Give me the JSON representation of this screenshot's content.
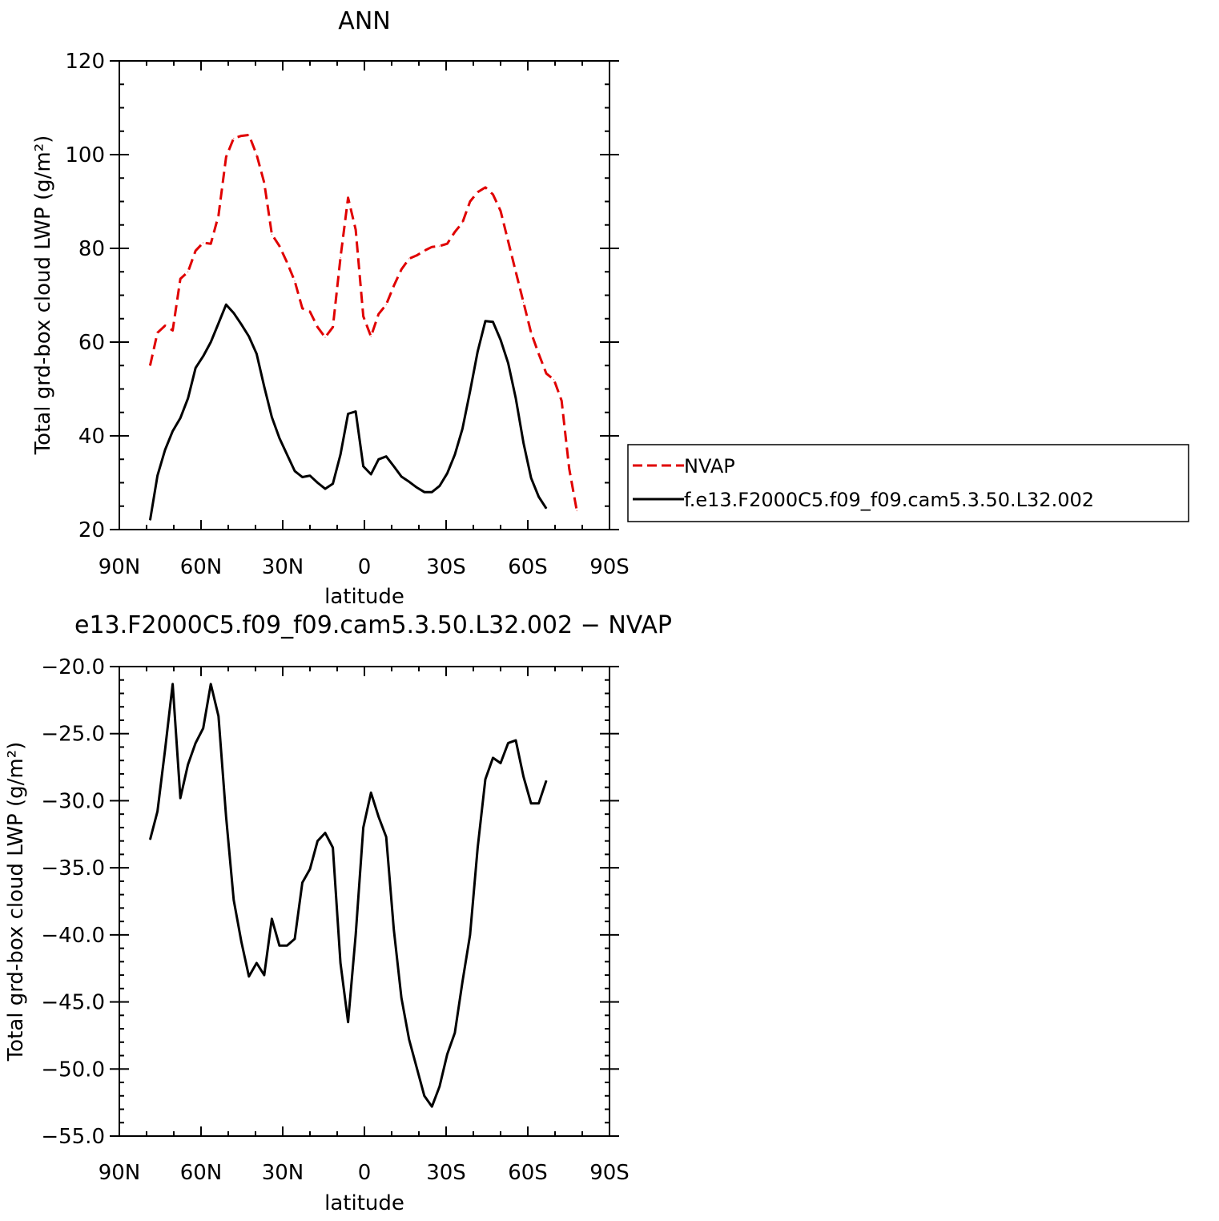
{
  "chart_data": [
    {
      "type": "line",
      "title": "ANN",
      "xlabel": "latitude",
      "ylabel": "Total grd-box cloud LWP (g/m²)",
      "xlim": [
        90,
        -90
      ],
      "ylim": [
        20,
        120
      ],
      "x_ticks": [
        90,
        60,
        30,
        0,
        -30,
        -60,
        -90
      ],
      "x_tick_labels": [
        "90N",
        "60N",
        "30N",
        "0",
        "30S",
        "60S",
        "90S"
      ],
      "y_ticks": [
        20,
        40,
        60,
        80,
        100,
        120
      ],
      "y_tick_labels": [
        "20",
        "40",
        "60",
        "80",
        "100",
        "120"
      ],
      "grid": false,
      "legend_position": "right",
      "series": [
        {
          "name": "NVAP",
          "color": "#e00000",
          "dash": "dashed",
          "x": [
            78.7,
            76,
            73.2,
            70.4,
            67.6,
            64.8,
            62,
            59.2,
            56.4,
            53.6,
            50.8,
            48,
            45.2,
            42.4,
            39.6,
            36.8,
            34,
            31.2,
            28.4,
            25.6,
            22.8,
            20,
            17.2,
            14.4,
            11.6,
            8.8,
            6,
            3.2,
            0.4,
            -2.4,
            -5.2,
            -8,
            -10.8,
            -13.6,
            -16.4,
            -19.2,
            -22,
            -24.8,
            -27.6,
            -30.4,
            -33.2,
            -36,
            -38.8,
            -41.6,
            -44.4,
            -47.2,
            -50,
            -52.8,
            -55.6,
            -58.4,
            -61.2,
            -64,
            -66.8,
            -69.6,
            -72.4,
            -75.2,
            -78
          ],
          "y": [
            55,
            62,
            63.5,
            62.5,
            73.5,
            75,
            79.5,
            81.2,
            81,
            87,
            99.5,
            103.5,
            104,
            104.2,
            100,
            94,
            83,
            80.5,
            77,
            73,
            67.2,
            66.5,
            63.2,
            61,
            63.2,
            78,
            90.8,
            84,
            65.5,
            61.2,
            66,
            68,
            72,
            75.5,
            77.8,
            78.5,
            79.5,
            80.3,
            80.5,
            81,
            83.5,
            85.5,
            90,
            92,
            93,
            91.5,
            88,
            81.5,
            75,
            68.5,
            62,
            57.5,
            53.3,
            52,
            47.5,
            33,
            24
          ]
        },
        {
          "name": "f.e13.F2000C5.f09_f09.cam5.3.50.L32.002",
          "color": "#000000",
          "dash": "solid",
          "x": [
            78.7,
            76,
            73.2,
            70.4,
            67.6,
            64.8,
            62,
            59.2,
            56.4,
            53.6,
            50.8,
            48,
            45.2,
            42.4,
            39.6,
            36.8,
            34,
            31.2,
            28.4,
            25.6,
            22.8,
            20,
            17.2,
            14.4,
            11.6,
            8.8,
            6,
            3.2,
            0.4,
            -2.4,
            -5.2,
            -8,
            -10.8,
            -13.6,
            -16.4,
            -19.2,
            -22,
            -24.8,
            -27.6,
            -30.4,
            -33.2,
            -36,
            -38.8,
            -41.6,
            -44.4,
            -47.2,
            -50,
            -52.8,
            -55.6,
            -58.4,
            -61.2,
            -64,
            -66.8
          ],
          "y": [
            22,
            31.5,
            37,
            41,
            43.8,
            48,
            54.5,
            57,
            60,
            64,
            68,
            66.2,
            63.8,
            61.2,
            57.5,
            50.5,
            44,
            39.5,
            36,
            32.5,
            31.2,
            31.5,
            30,
            28.7,
            29.8,
            36,
            44.7,
            45.2,
            33.5,
            31.8,
            35,
            35.6,
            33.5,
            31.3,
            30.2,
            29,
            28,
            28,
            29.3,
            32,
            36,
            41.5,
            49.5,
            58,
            64.5,
            64.3,
            60.5,
            55.5,
            48,
            38.5,
            31,
            27,
            24.5
          ]
        }
      ]
    },
    {
      "type": "line",
      "title": "e13.F2000C5.f09_f09.cam5.3.50.L32.002 − NVAP",
      "xlabel": "latitude",
      "ylabel": "Total grd-box cloud LWP (g/m²)",
      "xlim": [
        90,
        -90
      ],
      "ylim": [
        -55,
        -20
      ],
      "x_ticks": [
        90,
        60,
        30,
        0,
        -30,
        -60,
        -90
      ],
      "x_tick_labels": [
        "90N",
        "60N",
        "30N",
        "0",
        "30S",
        "60S",
        "90S"
      ],
      "y_ticks": [
        -20,
        -25,
        -30,
        -35,
        -40,
        -45,
        -50,
        -55
      ],
      "y_tick_labels": [
        "−20.0",
        "−25.0",
        "−30.0",
        "−35.0",
        "−40.0",
        "−45.0",
        "−50.0",
        "−55.0"
      ],
      "grid": false,
      "series": [
        {
          "color": "#000000",
          "dash": "solid",
          "x": [
            78.7,
            76,
            73.2,
            70.4,
            67.6,
            64.8,
            62,
            59.2,
            56.4,
            53.6,
            50.8,
            48,
            45.2,
            42.4,
            39.6,
            36.8,
            34,
            31.2,
            28.4,
            25.6,
            22.8,
            20,
            17.2,
            14.4,
            11.6,
            8.8,
            6,
            3.2,
            0.4,
            -2.4,
            -5.2,
            -8,
            -10.8,
            -13.6,
            -16.4,
            -19.2,
            -22,
            -24.8,
            -27.6,
            -30.4,
            -33.2,
            -36,
            -38.8,
            -41.6,
            -44.4,
            -47.2,
            -50,
            -52.8,
            -55.6,
            -58.4,
            -61.2,
            -64,
            -66.8
          ],
          "y": [
            -32.9,
            -30.8,
            -26.2,
            -21.3,
            -29.8,
            -27.3,
            -25.7,
            -24.6,
            -21.3,
            -23.7,
            -31.2,
            -37.4,
            -40.5,
            -43.1,
            -42.1,
            -43.0,
            -38.8,
            -40.8,
            -40.8,
            -40.3,
            -36.1,
            -35.1,
            -33.0,
            -32.4,
            -33.5,
            -42.1,
            -46.5,
            -40.0,
            -32.0,
            -29.4,
            -31.2,
            -32.7,
            -39.6,
            -44.7,
            -47.8,
            -49.9,
            -52.0,
            -52.8,
            -51.3,
            -48.9,
            -47.3,
            -43.5,
            -40.0,
            -33.5,
            -28.4,
            -26.8,
            -27.2,
            -25.7,
            -25.5,
            -28.2,
            -30.2,
            -30.2,
            -28.5
          ]
        }
      ]
    }
  ]
}
